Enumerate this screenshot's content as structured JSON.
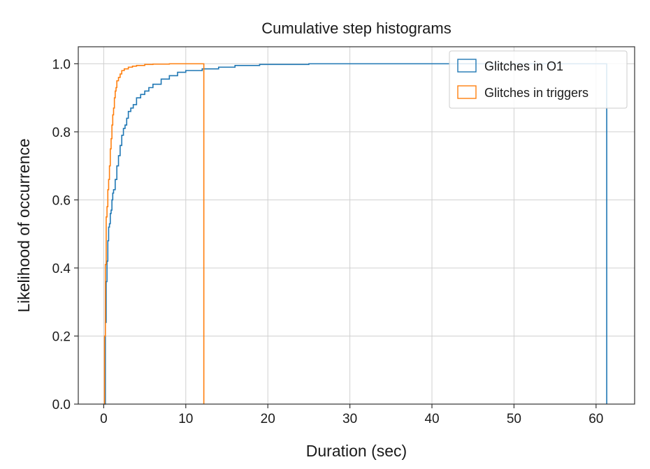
{
  "chart_data": {
    "type": "line",
    "title": "Cumulative step histograms",
    "xlabel": "Duration (sec)",
    "ylabel": "Likelihood of occurrence",
    "xlim": [
      -3.1,
      64.7
    ],
    "ylim": [
      0,
      1.05
    ],
    "xticks": [
      0,
      10,
      20,
      30,
      40,
      50,
      60
    ],
    "yticks": [
      0.0,
      0.2,
      0.4,
      0.6,
      0.8,
      1.0
    ],
    "xtick_labels": [
      "0",
      "10",
      "20",
      "30",
      "40",
      "50",
      "60"
    ],
    "ytick_labels": [
      "0.0",
      "0.2",
      "0.4",
      "0.6",
      "0.8",
      "1.0"
    ],
    "grid": true,
    "legend_position": "top-right",
    "series": [
      {
        "name": "Glitches in O1",
        "color": "#1f77b4",
        "step": true,
        "x": [
          0,
          0.2,
          0.3,
          0.4,
          0.5,
          0.6,
          0.7,
          0.8,
          0.9,
          1.0,
          1.1,
          1.2,
          1.4,
          1.6,
          1.8,
          2.0,
          2.2,
          2.4,
          2.6,
          2.8,
          3.0,
          3.3,
          3.6,
          4.0,
          4.5,
          5.0,
          5.5,
          6.0,
          7.0,
          8.0,
          9.0,
          10.0,
          12.0,
          14.0,
          16.0,
          19.0,
          25.0,
          61.3
        ],
        "y": [
          0.0,
          0.24,
          0.36,
          0.42,
          0.48,
          0.52,
          0.53,
          0.56,
          0.57,
          0.6,
          0.62,
          0.63,
          0.66,
          0.7,
          0.73,
          0.76,
          0.79,
          0.81,
          0.82,
          0.84,
          0.86,
          0.87,
          0.88,
          0.9,
          0.91,
          0.92,
          0.93,
          0.94,
          0.955,
          0.965,
          0.975,
          0.98,
          0.985,
          0.99,
          0.995,
          0.998,
          1.0,
          0.0
        ]
      },
      {
        "name": "Glitches in triggers",
        "color": "#ff7f0e",
        "step": true,
        "x": [
          0,
          0.1,
          0.2,
          0.3,
          0.4,
          0.5,
          0.6,
          0.7,
          0.8,
          0.9,
          1.0,
          1.1,
          1.2,
          1.3,
          1.4,
          1.5,
          1.6,
          1.8,
          2.0,
          2.2,
          2.5,
          3.0,
          3.5,
          4.0,
          5.0,
          6.0,
          8.0,
          12.2
        ],
        "y": [
          0.0,
          0.2,
          0.41,
          0.55,
          0.58,
          0.63,
          0.66,
          0.7,
          0.75,
          0.78,
          0.82,
          0.85,
          0.87,
          0.9,
          0.92,
          0.93,
          0.95,
          0.96,
          0.97,
          0.98,
          0.985,
          0.99,
          0.993,
          0.995,
          0.998,
          0.999,
          1.0,
          0.0
        ]
      }
    ]
  }
}
